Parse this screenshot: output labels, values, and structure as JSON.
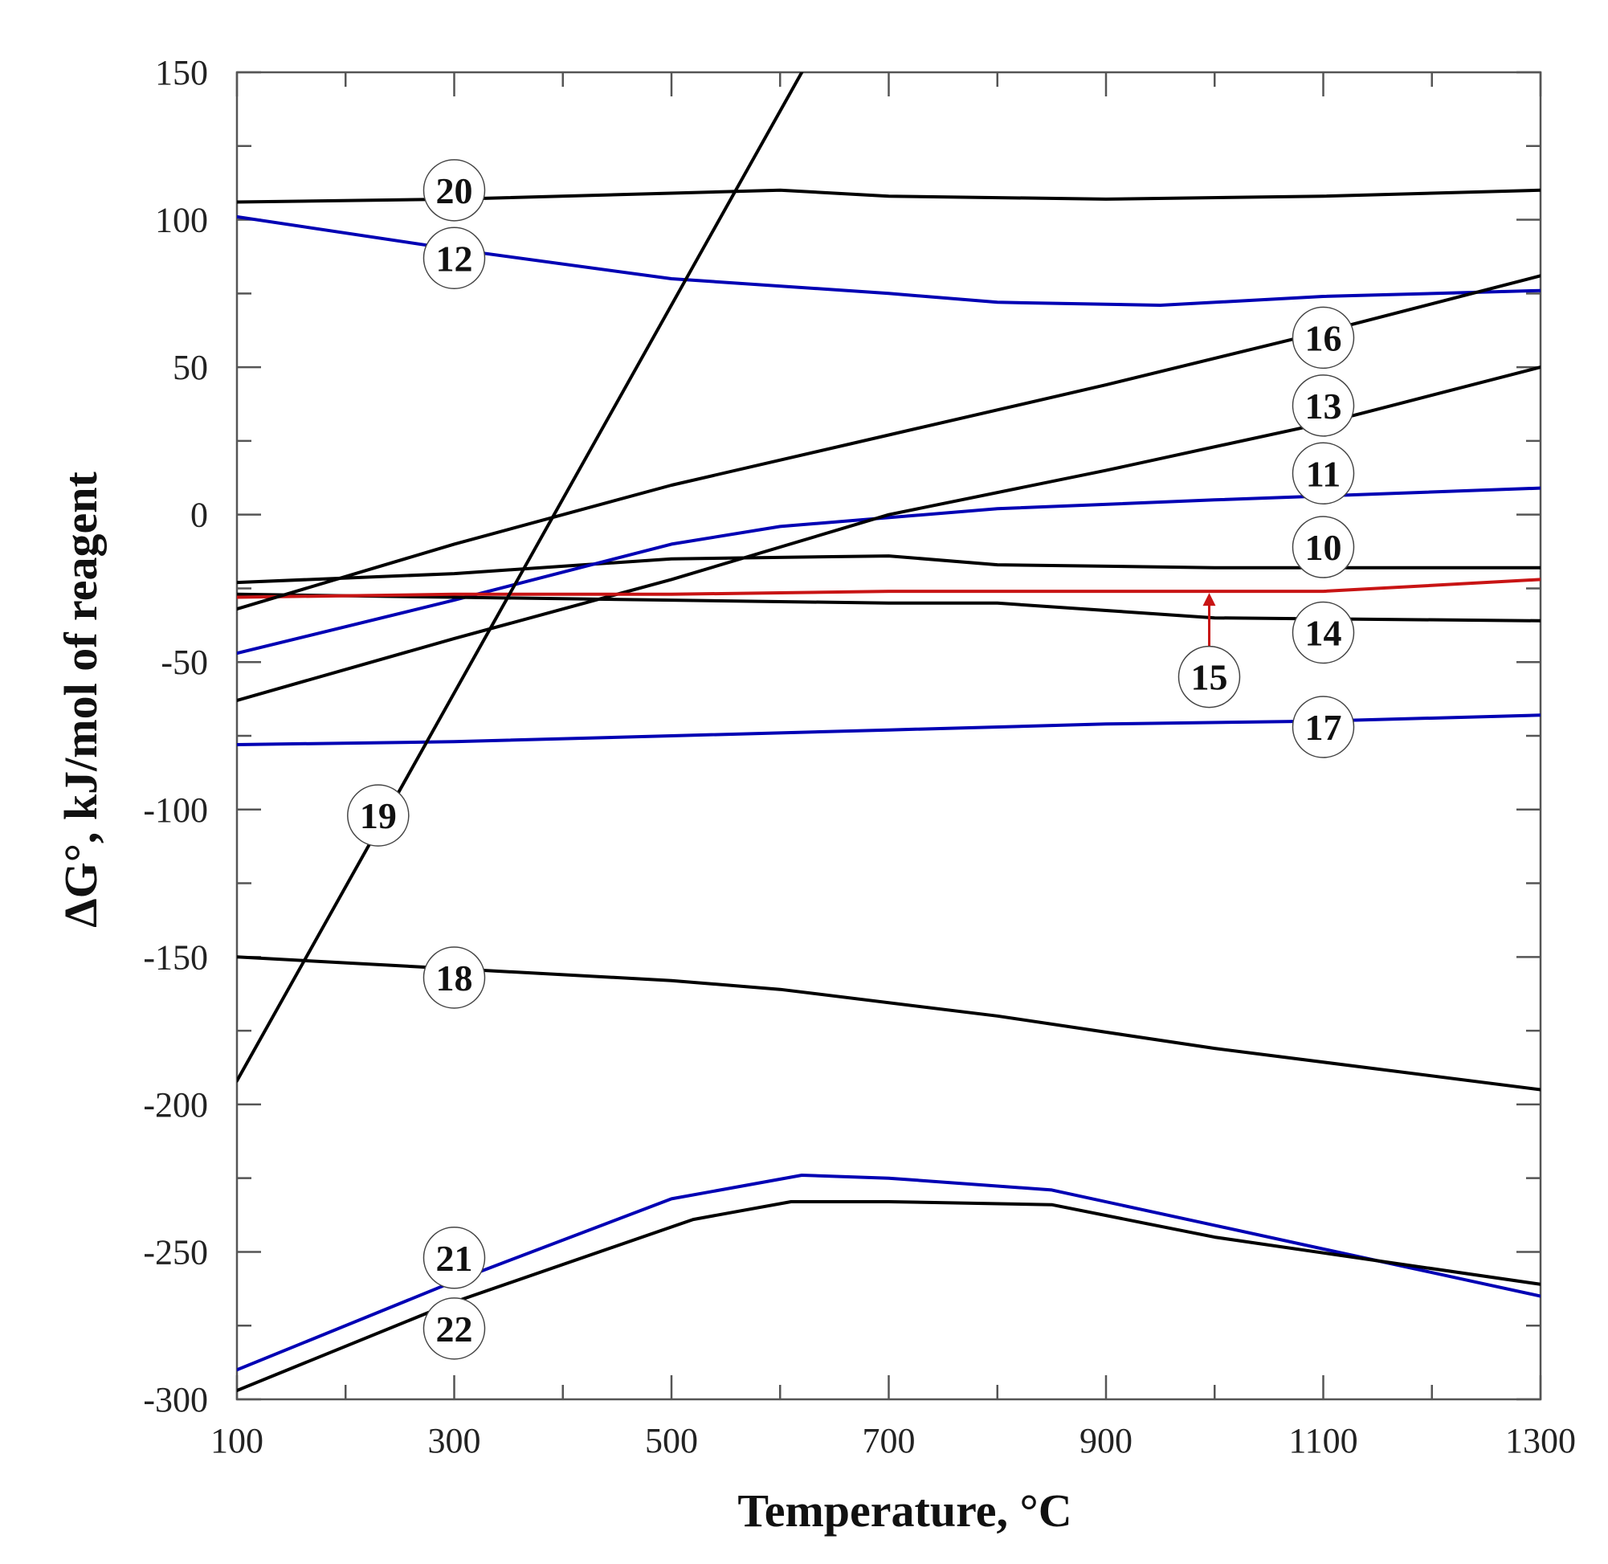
{
  "chart_data": {
    "type": "line",
    "title": "",
    "xlabel": "Temperature, °C",
    "ylabel": "ΔG°, kJ/mol of reagent",
    "xlim": [
      100,
      1300
    ],
    "ylim": [
      -300,
      150
    ],
    "xticks": [
      100,
      300,
      500,
      700,
      900,
      1100,
      1300
    ],
    "xtick_labels": [
      "100",
      "300",
      "500",
      "700",
      "900",
      "1100",
      "1300"
    ],
    "yticks": [
      -300,
      -250,
      -200,
      -150,
      -100,
      -50,
      0,
      50,
      100,
      150
    ],
    "ytick_labels": [
      "-300",
      "-250",
      "-200",
      "-150",
      "-100",
      "-50",
      "0",
      "50",
      "100",
      "150"
    ],
    "grid": false,
    "series": [
      {
        "name": "10",
        "color": "#000000",
        "x": [
          100,
          300,
          500,
          700,
          800,
          1000,
          1300
        ],
        "y": [
          -23,
          -20,
          -15,
          -14,
          -17,
          -18,
          -18
        ]
      },
      {
        "name": "11",
        "color": "#0000b4",
        "x": [
          100,
          300,
          500,
          600,
          800,
          1000,
          1300
        ],
        "y": [
          -47,
          -29,
          -10,
          -4,
          2,
          5,
          9
        ]
      },
      {
        "name": "12",
        "color": "#0000b4",
        "x": [
          100,
          300,
          500,
          700,
          800,
          950,
          1100,
          1300
        ],
        "y": [
          101,
          90,
          80,
          75,
          72,
          71,
          74,
          76
        ]
      },
      {
        "name": "13",
        "color": "#000000",
        "x": [
          100,
          300,
          500,
          700,
          900,
          1100,
          1300
        ],
        "y": [
          -63,
          -42,
          -22,
          0,
          15,
          31,
          50
        ]
      },
      {
        "name": "14",
        "color": "#000000",
        "x": [
          100,
          300,
          500,
          700,
          800,
          1000,
          1300
        ],
        "y": [
          -27,
          -28,
          -29,
          -30,
          -30,
          -35,
          -36
        ]
      },
      {
        "name": "15",
        "color": "#c81414",
        "x": [
          100,
          300,
          500,
          700,
          900,
          1100,
          1300
        ],
        "y": [
          -28,
          -27,
          -27,
          -26,
          -26,
          -26,
          -22
        ]
      },
      {
        "name": "16",
        "color": "#000000",
        "x": [
          100,
          300,
          500,
          700,
          900,
          1100,
          1300
        ],
        "y": [
          -32,
          -10,
          10,
          27,
          44,
          62,
          81
        ]
      },
      {
        "name": "17",
        "color": "#0000b4",
        "x": [
          100,
          300,
          500,
          700,
          900,
          1100,
          1300
        ],
        "y": [
          -78,
          -77,
          -75,
          -73,
          -71,
          -70,
          -68
        ]
      },
      {
        "name": "18",
        "color": "#000000",
        "x": [
          100,
          300,
          500,
          600,
          800,
          1000,
          1300
        ],
        "y": [
          -150,
          -154,
          -158,
          -161,
          -170,
          -181,
          -195
        ]
      },
      {
        "name": "19",
        "color": "#000000",
        "x": [
          100,
          620
        ],
        "y": [
          -192,
          150
        ]
      },
      {
        "name": "20",
        "color": "#000000",
        "x": [
          100,
          300,
          500,
          600,
          700,
          900,
          1100,
          1300
        ],
        "y": [
          106,
          107,
          109,
          110,
          108,
          107,
          108,
          110
        ]
      },
      {
        "name": "21",
        "color": "#0000b4",
        "x": [
          100,
          300,
          500,
          620,
          700,
          850,
          1000,
          1150,
          1300
        ],
        "y": [
          -290,
          -260,
          -232,
          -224,
          -225,
          -229,
          -241,
          -253,
          -265
        ]
      },
      {
        "name": "22",
        "color": "#000000",
        "x": [
          100,
          300,
          520,
          610,
          700,
          850,
          1000,
          1150,
          1300
        ],
        "y": [
          -297,
          -267,
          -239,
          -233,
          -233,
          -234,
          -245,
          -253,
          -261
        ]
      }
    ],
    "annotations": [
      {
        "label": "20",
        "x": 300,
        "y": 110
      },
      {
        "label": "12",
        "x": 300,
        "y": 87
      },
      {
        "label": "16",
        "x": 1100,
        "y": 60
      },
      {
        "label": "13",
        "x": 1100,
        "y": 37
      },
      {
        "label": "11",
        "x": 1100,
        "y": 14
      },
      {
        "label": "10",
        "x": 1100,
        "y": -11
      },
      {
        "label": "14",
        "x": 1100,
        "y": -40
      },
      {
        "label": "15",
        "x": 995,
        "y": -55,
        "arrow_to": [
          995,
          -26
        ]
      },
      {
        "label": "17",
        "x": 1100,
        "y": -72
      },
      {
        "label": "19",
        "x": 230,
        "y": -102
      },
      {
        "label": "18",
        "x": 300,
        "y": -157
      },
      {
        "label": "21",
        "x": 300,
        "y": -252
      },
      {
        "label": "22",
        "x": 300,
        "y": -276
      }
    ]
  }
}
